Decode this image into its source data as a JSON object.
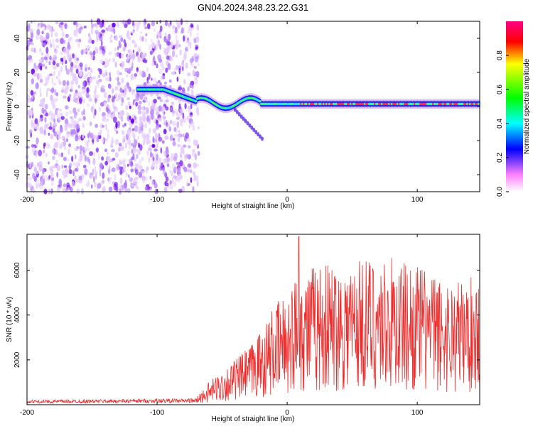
{
  "title": "GN04.2024.348.23.22.G31",
  "chart_data": [
    {
      "type": "heatmap",
      "xlabel": "Height of straight line (km)",
      "ylabel": "Frequency (Hz)",
      "xlim": [
        -200,
        148
      ],
      "ylim": [
        -50,
        50
      ],
      "xticks": [
        -200,
        -100,
        0,
        100
      ],
      "yticks": [
        -40,
        -20,
        0,
        20,
        40
      ],
      "colorbar": {
        "label": "Normalized spectral amplitude",
        "range": [
          0,
          1
        ],
        "ticks": [
          0.0,
          0.2,
          0.4,
          0.6,
          0.8
        ]
      },
      "features": {
        "noise_region_x": [
          -200,
          -68
        ],
        "signal_start_x": -115,
        "signal_band_hz": [
          0,
          3
        ]
      }
    },
    {
      "type": "line",
      "color": "#ee2c2c",
      "xlabel": "Height of straight line (km)",
      "ylabel": "SNR (10 * v/v)",
      "xlim": [
        -200,
        148
      ],
      "ylim": [
        0,
        7600
      ],
      "xticks": [
        -200,
        -100,
        0,
        100
      ],
      "yticks": [
        2000,
        4000,
        6000
      ],
      "envelope": {
        "x": [
          -200,
          -70,
          -60,
          -50,
          -40,
          -30,
          -20,
          -10,
          0,
          10,
          20,
          40,
          60,
          80,
          100,
          120,
          148
        ],
        "y": [
          150,
          200,
          600,
          900,
          1200,
          1500,
          2000,
          2600,
          3000,
          3600,
          3700,
          3800,
          3900,
          3900,
          3700,
          3300,
          3400
        ]
      },
      "peak": {
        "x": 9,
        "y": 7500
      }
    }
  ]
}
